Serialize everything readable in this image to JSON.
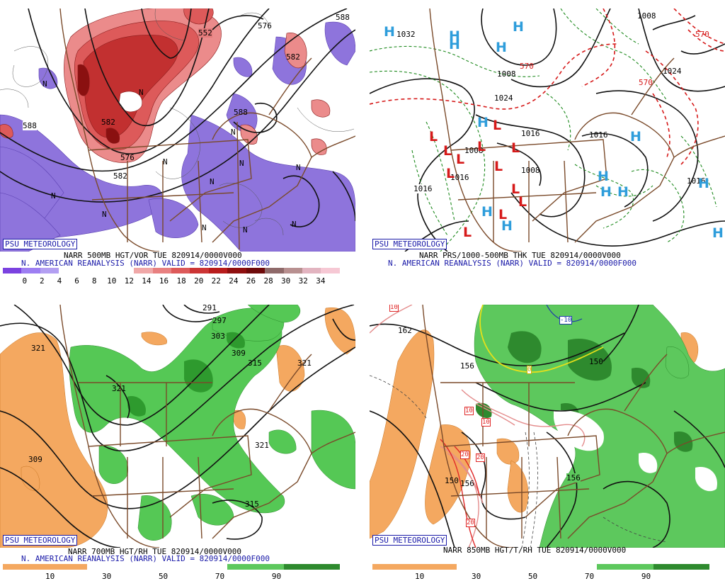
{
  "badge": "PSU METEOROLOGY",
  "panels": [
    {
      "id": "tl",
      "line1": "NARR 500MB HGT/VOR TUE 820914/0000V000",
      "line2": "N. AMERICAN REANALYSIS (NARR) VALID = 820914/0000F000",
      "scale_colors": [
        "#7b42e0",
        "#9d7ef2",
        "#b39ff2",
        "#ffffff",
        "#ffffff",
        "#ffffff",
        "#ffffff",
        "#f0a8a8",
        "#e88080",
        "#dd5a5a",
        "#cc3535",
        "#b81c1c",
        "#8f0f0f",
        "#6e0a0a",
        "#8f6a6a",
        "#b89090",
        "#e2b4c0",
        "#f6c8d4"
      ],
      "scale_ticks": [
        "0",
        "2",
        "4",
        "6",
        "8",
        "10",
        "12",
        "14",
        "16",
        "18",
        "20",
        "22",
        "24",
        "26",
        "28",
        "30",
        "32",
        "34"
      ],
      "contour_labels": [
        "552",
        "576",
        "588",
        "582",
        "588",
        "576",
        "582",
        "588",
        "582"
      ],
      "sym_labels": [
        "N",
        "N",
        "N",
        "N",
        "N",
        "N",
        "N",
        "N",
        "N",
        "N",
        "N",
        "N"
      ]
    },
    {
      "id": "tr",
      "line1": "NARR PRS/1000-500MB THK TUE 820914/0000V000",
      "line2": "N. AMERICAN REANALYSIS (NARR) VALID = 820914/0000F000",
      "contour_labels": [
        "1032",
        "1024",
        "1016",
        "1008",
        "1016",
        "1008",
        "1016",
        "1008",
        "1024",
        "1016",
        "1008",
        "1016"
      ],
      "thk_labels": [
        "570",
        "570",
        "570"
      ],
      "highs": [
        "H",
        "H",
        "H",
        "H",
        "H",
        "H",
        "H",
        "H",
        "H",
        "H",
        "H",
        "H",
        "H",
        "H"
      ],
      "lows": [
        "L",
        "L",
        "L",
        "L",
        "L",
        "L",
        "L",
        "L",
        "L",
        "L",
        "L",
        "L"
      ]
    },
    {
      "id": "bl",
      "line1": "NARR 700MB HGT/RH TUE 820914/0000V000",
      "line2": "N. AMERICAN REANALYSIS (NARR) VALID = 820914/0000F000",
      "scale_ticks": [
        "10",
        "30",
        "50",
        "70",
        "90"
      ],
      "contour_labels": [
        "291",
        "297",
        "303",
        "309",
        "315",
        "321",
        "321",
        "309",
        "315",
        "321",
        "321"
      ]
    },
    {
      "id": "br",
      "line1": "NARR 850MB HGT/T/RH TUE 820914/0000V000",
      "scale_ticks": [
        "10",
        "30",
        "50",
        "70",
        "90"
      ],
      "contour_labels": [
        "162",
        "156",
        "150",
        "156",
        "150",
        "156"
      ],
      "temp_labels": [
        "10",
        "-10",
        "0",
        "10",
        "10",
        "20",
        "20",
        "20"
      ]
    }
  ]
}
